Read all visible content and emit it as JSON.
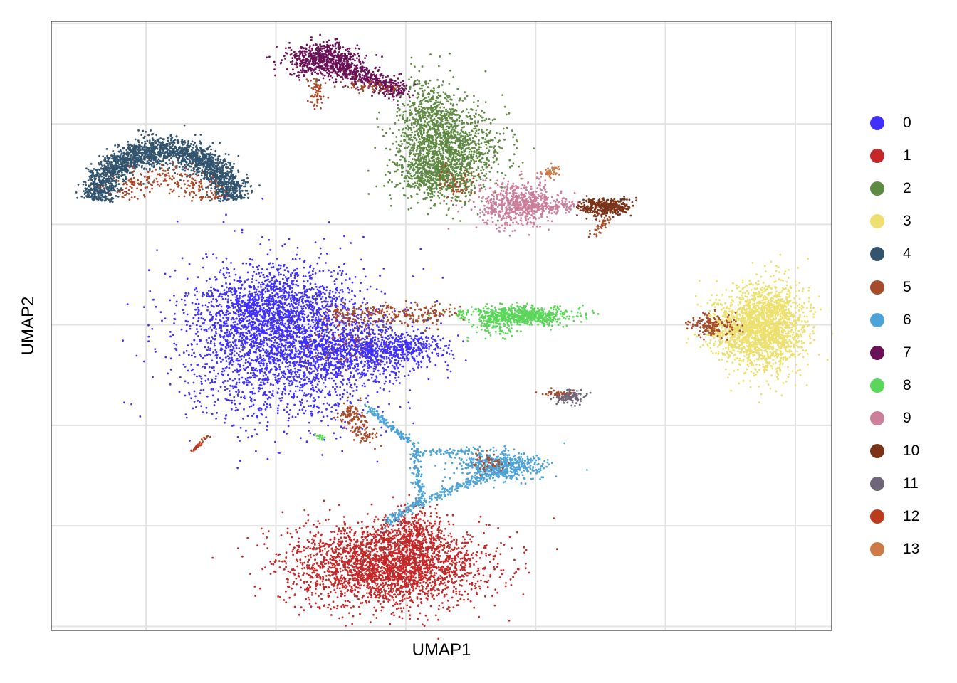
{
  "chart_data": {
    "type": "scatter",
    "title": "",
    "xlabel": "UMAP1",
    "ylabel": "UMAP2",
    "tick_labels_shown": false,
    "grid": true,
    "x_gridlines": [
      -10,
      -5,
      0,
      5,
      10,
      15
    ],
    "y_gridlines": [
      -15,
      -10,
      -5,
      0,
      5,
      10,
      15
    ],
    "xlim": [
      -13.65,
      16.4
    ],
    "ylim": [
      -15.2,
      15.1
    ],
    "legend": {
      "placement": "right",
      "title": ""
    },
    "series": [
      {
        "name": "0",
        "color": "#4030FF",
        "components": [
          {
            "type": "gauss",
            "center": [
              -4.7,
              -0.9
            ],
            "sd": [
              1.9,
              1.9
            ],
            "n": 2600
          },
          {
            "type": "gauss",
            "center": [
              -5.2,
              0.9
            ],
            "sd": [
              1.3,
              0.9
            ],
            "n": 700
          },
          {
            "type": "gauss",
            "center": [
              -1.6,
              -1.3
            ],
            "sd": [
              1.3,
              0.7
            ],
            "n": 800
          },
          {
            "type": "gauss",
            "center": [
              0.2,
              -1.1
            ],
            "sd": [
              0.6,
              0.3
            ],
            "n": 200
          }
        ]
      },
      {
        "name": "1",
        "color": "#C42828",
        "components": [
          {
            "type": "gauss",
            "center": [
              -0.7,
              -12.0
            ],
            "sd": [
              1.9,
              1.0
            ],
            "n": 2600
          },
          {
            "type": "gauss",
            "center": [
              0.2,
              -10.6
            ],
            "sd": [
              0.6,
              0.8
            ],
            "n": 400
          }
        ]
      },
      {
        "name": "2",
        "color": "#5F8A44",
        "components": [
          {
            "type": "gauss",
            "center": [
              0.9,
              10.0
            ],
            "sd": [
              0.6,
              1.2
            ],
            "n": 700
          },
          {
            "type": "gauss",
            "center": [
              1.9,
              8.6
            ],
            "sd": [
              1.0,
              1.0
            ],
            "n": 900
          },
          {
            "type": "gauss",
            "center": [
              1.1,
              7.4
            ],
            "sd": [
              0.7,
              0.6
            ],
            "n": 500
          }
        ]
      },
      {
        "name": "3",
        "color": "#EDE06F",
        "components": [
          {
            "type": "gauss",
            "center": [
              13.9,
              -0.1
            ],
            "sd": [
              0.75,
              1.1
            ],
            "n": 1800
          },
          {
            "type": "gauss",
            "center": [
              12.6,
              -0.3
            ],
            "sd": [
              0.6,
              0.7
            ],
            "n": 400
          }
        ]
      },
      {
        "name": "4",
        "color": "#33546E",
        "components": [
          {
            "type": "arc",
            "center": [
              -9.3,
              5.8
            ],
            "radius": [
              2.7,
              2.9
            ],
            "angles": [
              8,
              172
            ],
            "jitter": 0.35,
            "n": 2200
          }
        ]
      },
      {
        "name": "5",
        "color": "#A84B2B",
        "components": [
          {
            "type": "arc",
            "center": [
              -9.3,
              5.8
            ],
            "radius": [
              1.9,
              1.6
            ],
            "angles": [
              15,
              160
            ],
            "jitter": 0.3,
            "n": 220
          },
          {
            "type": "line",
            "from": [
              -3.5,
              12.2
            ],
            "to": [
              -3.4,
              10.9
            ],
            "jitter": 0.15,
            "n": 60
          },
          {
            "type": "line",
            "from": [
              -2.6,
              12.0
            ],
            "to": [
              -0.5,
              11.7
            ],
            "jitter": 0.15,
            "n": 50
          },
          {
            "type": "line",
            "from": [
              -2.8,
              0.5
            ],
            "to": [
              1.7,
              0.5
            ],
            "jitter": 0.3,
            "n": 260
          },
          {
            "type": "line",
            "from": [
              -2.3,
              -4.1
            ],
            "to": [
              -1.5,
              -5.7
            ],
            "jitter": 0.25,
            "n": 140
          },
          {
            "type": "gauss",
            "center": [
              11.8,
              0.0
            ],
            "sd": [
              0.5,
              0.3
            ],
            "n": 150
          },
          {
            "type": "gauss",
            "center": [
              3.1,
              -6.9
            ],
            "sd": [
              0.35,
              0.25
            ],
            "n": 50
          },
          {
            "type": "line",
            "from": [
              7.8,
              5.3
            ],
            "to": [
              7.2,
              4.5
            ],
            "jitter": 0.1,
            "n": 40
          },
          {
            "type": "gauss",
            "center": [
              1.9,
              7.0
            ],
            "sd": [
              0.4,
              0.4
            ],
            "n": 60
          },
          {
            "type": "gauss",
            "center": [
              5.8,
              -3.4
            ],
            "sd": [
              0.3,
              0.1
            ],
            "n": 30
          },
          {
            "type": "gauss",
            "center": [
              -2.5,
              -0.5
            ],
            "sd": [
              0.8,
              0.8
            ],
            "n": 60
          }
        ]
      },
      {
        "name": "6",
        "color": "#4EA3D6",
        "components": [
          {
            "type": "gauss",
            "center": [
              3.6,
              -7.0
            ],
            "sd": [
              0.8,
              0.35
            ],
            "n": 600
          },
          {
            "type": "line",
            "from": [
              -1.5,
              -4.1
            ],
            "to": [
              0.3,
              -6.0
            ],
            "jitter": 0.08,
            "n": 120
          },
          {
            "type": "line",
            "from": [
              0.3,
              -6.0
            ],
            "to": [
              0.6,
              -8.8
            ],
            "jitter": 0.1,
            "n": 120
          },
          {
            "type": "line",
            "from": [
              0.6,
              -8.8
            ],
            "to": [
              -0.8,
              -9.9
            ],
            "jitter": 0.12,
            "n": 100
          },
          {
            "type": "line",
            "from": [
              0.6,
              -8.8
            ],
            "to": [
              3.3,
              -7.4
            ],
            "jitter": 0.12,
            "n": 180
          },
          {
            "type": "line",
            "from": [
              0.3,
              -6.4
            ],
            "to": [
              3.0,
              -6.2
            ],
            "jitter": 0.1,
            "n": 80
          }
        ]
      },
      {
        "name": "7",
        "color": "#6A1157",
        "components": [
          {
            "type": "gauss",
            "center": [
              -3.2,
              13.2
            ],
            "sd": [
              0.7,
              0.4
            ],
            "n": 600
          },
          {
            "type": "line",
            "from": [
              -2.7,
              12.9
            ],
            "to": [
              -0.1,
              11.6
            ],
            "jitter": 0.25,
            "n": 450
          }
        ]
      },
      {
        "name": "8",
        "color": "#5CD65A",
        "components": [
          {
            "type": "gauss",
            "center": [
              4.4,
              0.45
            ],
            "sd": [
              1.0,
              0.22
            ],
            "n": 700
          },
          {
            "type": "gauss",
            "center": [
              3.4,
              -0.1
            ],
            "sd": [
              0.4,
              0.25
            ],
            "n": 80
          },
          {
            "type": "gauss",
            "center": [
              -3.3,
              -5.6
            ],
            "sd": [
              0.1,
              0.1
            ],
            "n": 15
          }
        ]
      },
      {
        "name": "9",
        "color": "#CC7F98",
        "components": [
          {
            "type": "gauss",
            "center": [
              4.3,
              6.0
            ],
            "sd": [
              0.75,
              0.55
            ],
            "n": 600
          },
          {
            "type": "line",
            "from": [
              4.5,
              5.9
            ],
            "to": [
              6.6,
              5.9
            ],
            "jitter": 0.15,
            "n": 150
          }
        ]
      },
      {
        "name": "10",
        "color": "#7A3318",
        "components": [
          {
            "type": "gauss",
            "center": [
              7.7,
              5.85
            ],
            "sd": [
              0.5,
              0.22
            ],
            "n": 350
          }
        ]
      },
      {
        "name": "11",
        "color": "#6F6679",
        "components": [
          {
            "type": "gauss",
            "center": [
              6.3,
              -3.6
            ],
            "sd": [
              0.3,
              0.18
            ],
            "n": 120
          }
        ]
      },
      {
        "name": "12",
        "color": "#BD3B1D",
        "components": [
          {
            "type": "line",
            "from": [
              -8.2,
              -6.3
            ],
            "to": [
              -7.6,
              -5.5
            ],
            "jitter": 0.04,
            "n": 40
          }
        ]
      },
      {
        "name": "13",
        "color": "#CC7A48",
        "components": [
          {
            "type": "gauss",
            "center": [
              5.6,
              7.6
            ],
            "sd": [
              0.2,
              0.15
            ],
            "n": 40
          }
        ]
      }
    ]
  }
}
